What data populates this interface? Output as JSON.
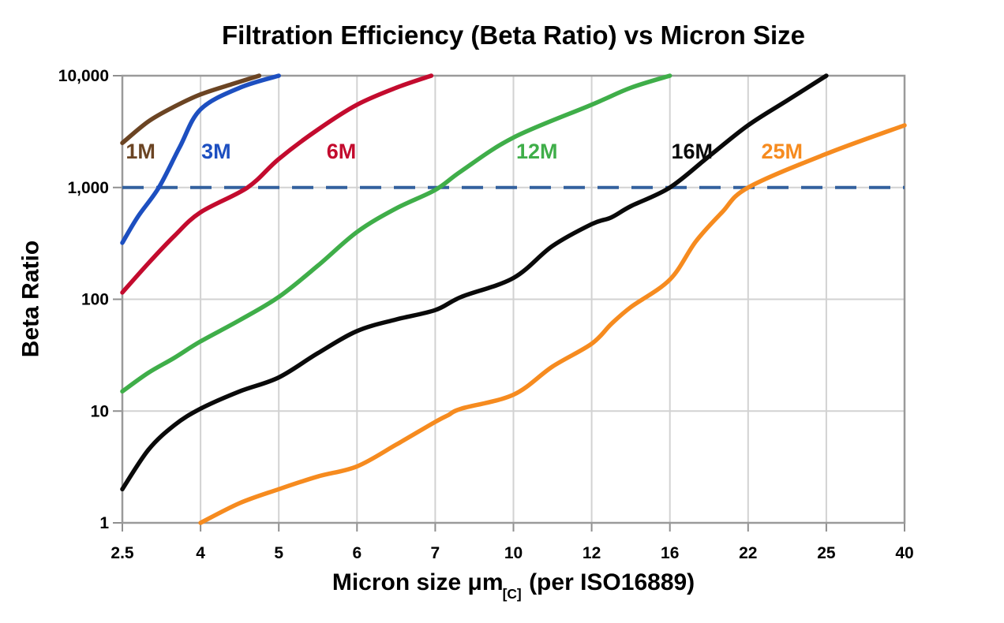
{
  "chart_data": {
    "type": "line",
    "title": "Filtration Efficiency (Beta Ratio) vs Micron Size",
    "ylabel": "Beta Ratio",
    "xlabel_main": "Micron size μm",
    "xlabel_sub": "[C]",
    "xlabel_suffix": " (per ISO16889)",
    "x_scale": "equal-spaced-ticks",
    "x_ticks": [
      2.5,
      4,
      5,
      6,
      7,
      10,
      12,
      16,
      22,
      25,
      40
    ],
    "x_tick_labels": [
      "2.5",
      "4",
      "5",
      "6",
      "7",
      "10",
      "12",
      "16",
      "22",
      "25",
      "40"
    ],
    "y_scale": "log",
    "y_ticks": [
      1,
      10,
      100,
      1000,
      10000
    ],
    "y_tick_labels": [
      "1",
      "10",
      "100",
      "1,000",
      "10,000"
    ],
    "ylim": [
      1,
      10000
    ],
    "grid": true,
    "legend_position": "inline-labels",
    "colors": {
      "grid": "#D2D2D2",
      "frame": "#9A9A9A",
      "tick": "#8F8F8F",
      "text": "#000000",
      "reference": "#33619E",
      "background": "#FFFFFF"
    },
    "reference_line": {
      "value": 1000,
      "style": "dashed",
      "color": "#33619E"
    },
    "series": [
      {
        "name": "1M",
        "color": "#6B4423",
        "label_at": {
          "x": 2.85,
          "y": 2100
        },
        "points": [
          [
            2.5,
            2500
          ],
          [
            3,
            3900
          ],
          [
            3.5,
            5300
          ],
          [
            4,
            6800
          ],
          [
            4.4,
            8400
          ],
          [
            4.75,
            10000
          ]
        ]
      },
      {
        "name": "3M",
        "color": "#1D4FC0",
        "label_at": {
          "x": 4.2,
          "y": 2100
        },
        "points": [
          [
            2.5,
            320
          ],
          [
            2.8,
            550
          ],
          [
            3.2,
            1000
          ],
          [
            3.6,
            2300
          ],
          [
            4,
            5000
          ],
          [
            4.5,
            7800
          ],
          [
            5,
            10000
          ]
        ]
      },
      {
        "name": "6M",
        "color": "#C30B2E",
        "label_at": {
          "x": 5.8,
          "y": 2100
        },
        "points": [
          [
            2.5,
            115
          ],
          [
            3,
            210
          ],
          [
            3.5,
            370
          ],
          [
            4,
            600
          ],
          [
            4.6,
            1000
          ],
          [
            5,
            1800
          ],
          [
            5.5,
            3300
          ],
          [
            6,
            5500
          ],
          [
            6.5,
            7800
          ],
          [
            6.95,
            10000
          ]
        ]
      },
      {
        "name": "12M",
        "color": "#3FAE49",
        "label_at": {
          "x": 10.6,
          "y": 2100
        },
        "points": [
          [
            2.5,
            15
          ],
          [
            3,
            22
          ],
          [
            3.5,
            30
          ],
          [
            4,
            42
          ],
          [
            4.5,
            65
          ],
          [
            5,
            105
          ],
          [
            5.5,
            200
          ],
          [
            6,
            400
          ],
          [
            6.5,
            650
          ],
          [
            7,
            950
          ],
          [
            8,
            1400
          ],
          [
            10,
            2800
          ],
          [
            12,
            5500
          ],
          [
            14,
            7800
          ],
          [
            16,
            10000
          ]
        ]
      },
      {
        "name": "16M",
        "color": "#0A0A0A",
        "label_at": {
          "x": 17.7,
          "y": 2100
        },
        "points": [
          [
            2.5,
            2
          ],
          [
            3,
            4.5
          ],
          [
            3.5,
            7.5
          ],
          [
            4,
            10.5
          ],
          [
            4.5,
            15
          ],
          [
            5,
            20
          ],
          [
            5.5,
            33
          ],
          [
            6,
            52
          ],
          [
            6.5,
            66
          ],
          [
            7,
            80
          ],
          [
            8,
            105
          ],
          [
            10,
            155
          ],
          [
            11,
            300
          ],
          [
            12,
            470
          ],
          [
            13,
            540
          ],
          [
            14,
            680
          ],
          [
            16,
            1000
          ],
          [
            19,
            1900
          ],
          [
            22,
            3600
          ],
          [
            23.5,
            6000
          ],
          [
            25,
            10000
          ]
        ]
      },
      {
        "name": "25M",
        "color": "#F68B1F",
        "label_at": {
          "x": 23.3,
          "y": 2100
        },
        "points": [
          [
            4,
            1
          ],
          [
            4.5,
            1.5
          ],
          [
            5,
            2
          ],
          [
            5.5,
            2.6
          ],
          [
            6,
            3.2
          ],
          [
            6.5,
            5
          ],
          [
            7,
            8
          ],
          [
            7.5,
            9.2
          ],
          [
            8,
            10.5
          ],
          [
            10,
            14
          ],
          [
            11,
            25
          ],
          [
            12,
            40
          ],
          [
            13,
            60
          ],
          [
            14,
            85
          ],
          [
            16,
            150
          ],
          [
            18,
            330
          ],
          [
            20,
            600
          ],
          [
            22,
            1000
          ],
          [
            25,
            2000
          ],
          [
            40,
            3600
          ]
        ]
      }
    ]
  }
}
